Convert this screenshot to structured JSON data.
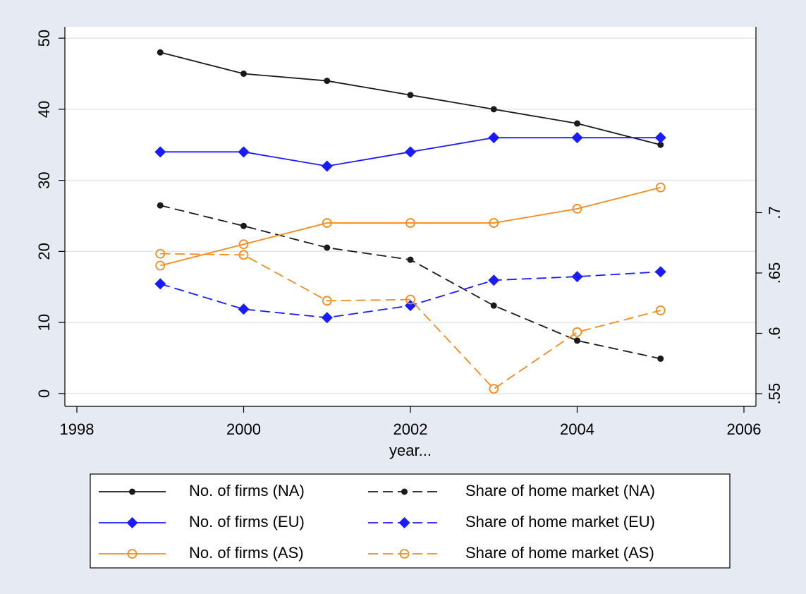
{
  "chart_data": {
    "type": "line",
    "x": [
      1999,
      2000,
      2001,
      2002,
      2003,
      2004,
      2005
    ],
    "xlabel": "year...",
    "xlim": [
      1997.856,
      2006.144
    ],
    "xticks": [
      1998,
      2000,
      2002,
      2004,
      2006
    ],
    "ylim": [
      -1.8,
      51.6
    ],
    "yticks": [
      0,
      10,
      20,
      30,
      40,
      50
    ],
    "y2lim": [
      0.5395,
      0.854
    ],
    "y2ticks": [
      {
        "value": 0.55,
        "label": ".55"
      },
      {
        "value": 0.6,
        "label": ".6"
      },
      {
        "value": 0.65,
        "label": ".65"
      },
      {
        "value": 0.7,
        "label": ".7"
      }
    ],
    "grid": true,
    "legend": {
      "position": "bottom",
      "columns": 2
    },
    "series": [
      {
        "name": "No. of firms (NA)",
        "color": "#1a1a1a",
        "marker": "dot",
        "dash": false,
        "values": [
          48,
          45,
          44,
          42,
          40,
          38,
          35
        ]
      },
      {
        "name": "Share of home market (NA)",
        "color": "#1a1a1a",
        "marker": "dot",
        "dash": true,
        "axis": "y2",
        "values": [
          0.706,
          0.689,
          0.671,
          0.661,
          0.623,
          0.594,
          0.579
        ]
      },
      {
        "name": "No. of firms (EU)",
        "color": "#1a1aff",
        "marker": "diamond",
        "dash": false,
        "values": [
          34,
          34,
          32,
          34,
          36,
          36,
          36
        ]
      },
      {
        "name": "Share of home market (EU)",
        "color": "#1a1aff",
        "marker": "diamond",
        "dash": true,
        "axis": "y2",
        "values": [
          0.641,
          0.62,
          0.613,
          0.623,
          0.644,
          0.647,
          0.651
        ]
      },
      {
        "name": "No. of firms (AS)",
        "color": "#f28c1e",
        "marker": "hollow",
        "dash": false,
        "values": [
          18,
          21,
          24,
          24,
          24,
          26,
          29
        ]
      },
      {
        "name": "Share of home market (AS)",
        "color": "#f28c1e",
        "marker": "hollow",
        "dash": true,
        "axis": "y2",
        "values": [
          0.666,
          0.665,
          0.627,
          0.628,
          0.554,
          0.601,
          0.619
        ]
      }
    ]
  }
}
